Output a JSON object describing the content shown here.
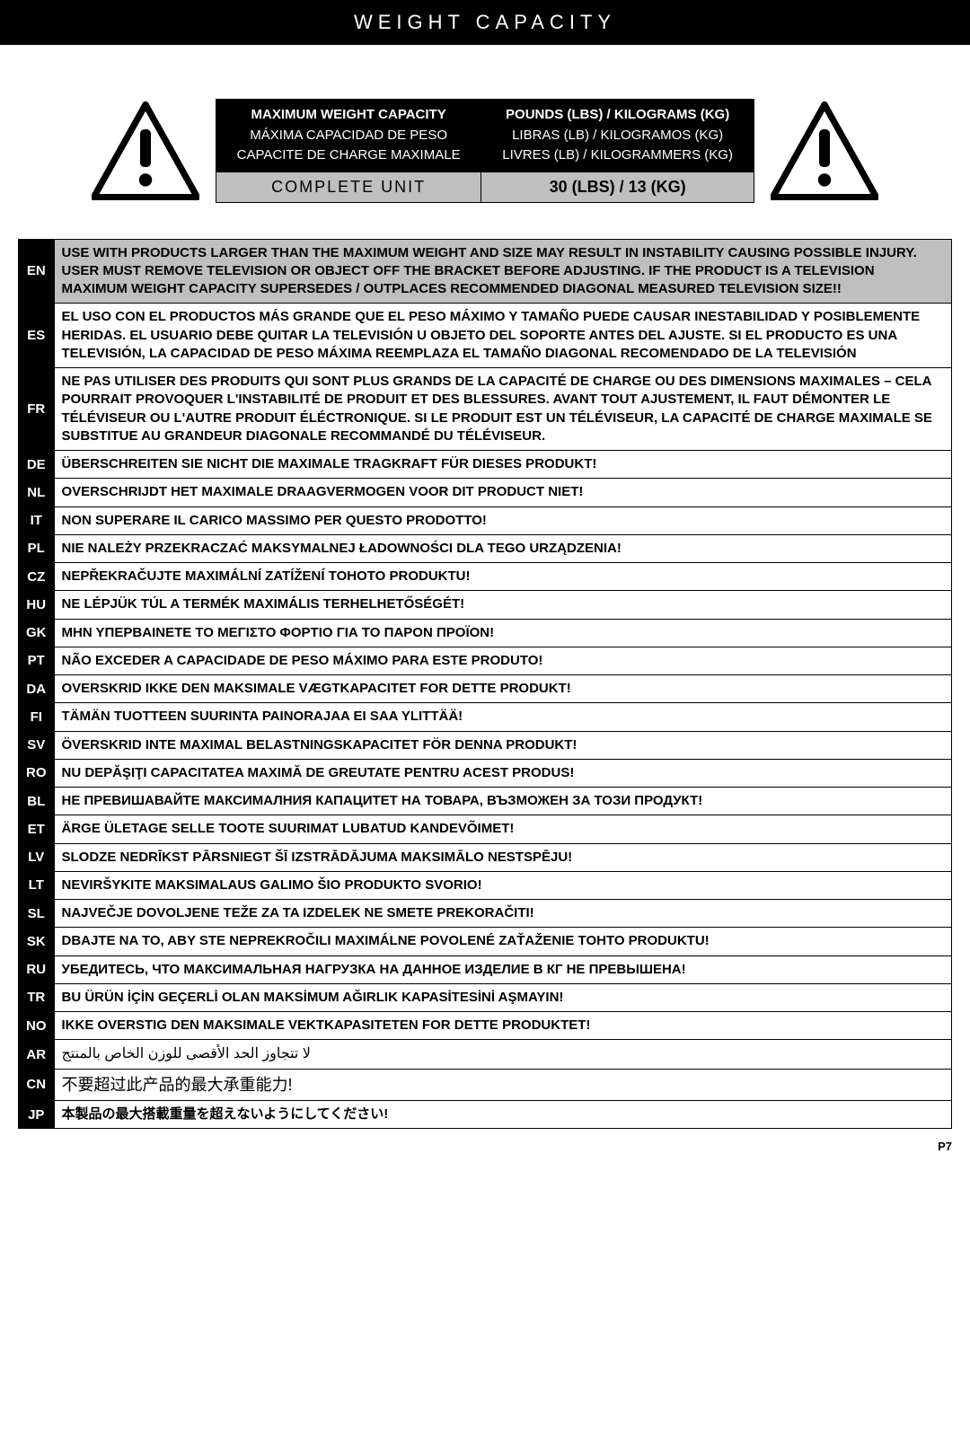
{
  "title": "WEIGHT CAPACITY",
  "page_number": "P7",
  "capacity": {
    "header_left": {
      "line1": "MAXIMUM WEIGHT CAPACITY",
      "line2": "MÁXIMA CAPACIDAD DE PESO",
      "line3": "CAPACITE DE CHARGE MAXIMALE"
    },
    "header_right": {
      "line1": "POUNDS (LBS) / KILOGRAMS (KG)",
      "line2": "LIBRAS (LB) / KILOGRAMOS (KG)",
      "line3": "LIVRES (LB) / KILOGRAMMERS (KG)"
    },
    "row_label": "COMPLETE UNIT",
    "row_value": "30 (LBS) / 13 (KG)"
  },
  "warnings": [
    {
      "lang": "EN",
      "shaded": true,
      "text": "USE WITH PRODUCTS LARGER THAN THE MAXIMUM WEIGHT AND SIZE MAY RESULT IN INSTABILITY CAUSING POSSIBLE INJURY.  USER MUST REMOVE TELEVISION OR OBJECT OFF THE BRACKET BEFORE ADJUSTING.  IF THE PRODUCT IS A TELEVISION MAXIMUM WEIGHT CAPACITY SUPERSEDES / OUTPLACES RECOMMENDED DIAGONAL  MEASURED TELEVISION SIZE!!"
    },
    {
      "lang": "ES",
      "shaded": false,
      "text": "EL USO CON EL PRODUCTOS MÁS GRANDE QUE EL PESO MÁXIMO Y TAMAÑO PUEDE CAUSAR INESTABILIDAD Y POSIBLEMENTE HERIDAS. EL USUARIO DEBE QUITAR LA TELEVISIÓN U OBJETO DEL SOPORTE ANTES DEL AJUSTE. SI EL PRODUCTO ES UNA TELEVISIÓN, LA CAPACIDAD DE PESO MÁXIMA REEMPLAZA EL TAMAÑO DIAGONAL RECOMENDADO DE LA TELEVISIÓN"
    },
    {
      "lang": "FR",
      "shaded": false,
      "text": "NE PAS UTILISER DES PRODUITS QUI SONT PLUS GRANDS DE LA CAPACITÉ DE CHARGE OU DES DIMENSIONS MAXIMALES – CELA POURRAIT PROVOQUER L'INSTABILITÉ DE PRODUIT ET DES BLESSURES. AVANT TOUT AJUSTEMENT, IL FAUT DÉMONTER LE TÉLÉVISEUR OU L'AUTRE PRODUIT ÉLÉCTRONIQUE. SI LE PRODUIT EST UN TÉLÉVISEUR, LA CAPACITÉ DE CHARGE MAXIMALE SE SUBSTITUE AU GRANDEUR DIAGONALE RECOMMANDÉ DU TÉLÉVISEUR."
    },
    {
      "lang": "DE",
      "shaded": false,
      "text": "ÜBERSCHREITEN SIE NICHT DIE MAXIMALE TRAGKRAFT FÜR DIESES PRODUKT!"
    },
    {
      "lang": "NL",
      "shaded": false,
      "text": "OVERSCHRIJDT HET MAXIMALE DRAAGVERMOGEN VOOR DIT PRODUCT NIET!"
    },
    {
      "lang": "IT",
      "shaded": false,
      "text": "NON SUPERARE IL CARICO MASSIMO PER QUESTO PRODOTTO!"
    },
    {
      "lang": "PL",
      "shaded": false,
      "text": "NIE NALEŻY PRZEKRACZAĆ MAKSYMALNEJ ŁADOWNOŚCI DLA TEGO URZĄDZENIA!"
    },
    {
      "lang": "CZ",
      "shaded": false,
      "text": "NEPŘEKRAČUJTE MAXIMÁLNÍ ZATÍŽENÍ TOHOTO PRODUKTU!"
    },
    {
      "lang": "HU",
      "shaded": false,
      "text": "NE LÉPJÜK TÚL A TERMÉK MAXIMÁLIS TERHELHETŐSÉGÉT!"
    },
    {
      "lang": "GK",
      "shaded": false,
      "text": "ΜΗΝ ΥΠΕΡΒΑΙΝΕΤΕ ΤΟ ΜΕΓΙΣΤΟ ΦΟΡΤΙΟ ΓΙΑ ΤΟ ΠΑΡΟΝ ΠΡΟΪΟΝ!"
    },
    {
      "lang": "PT",
      "shaded": false,
      "text": "NÃO EXCEDER A CAPACIDADE DE PESO MÁXIMO PARA ESTE PRODUTO!"
    },
    {
      "lang": "DA",
      "shaded": false,
      "text": "OVERSKRID IKKE DEN MAKSIMALE VÆGTKAPACITET FOR DETTE PRODUKT!"
    },
    {
      "lang": "FI",
      "shaded": false,
      "text": "TÄMÄN TUOTTEEN SUURINTA PAINORAJAA EI SAA YLITTÄÄ!"
    },
    {
      "lang": "SV",
      "shaded": false,
      "text": "ÖVERSKRID INTE MAXIMAL BELASTNINGSKAPACITET FÖR DENNA PRODUKT!"
    },
    {
      "lang": "RO",
      "shaded": false,
      "text": "NU DEPĂŞIŢI CAPACITATEA MAXIMĂ DE GREUTATE PENTRU ACEST PRODUS!"
    },
    {
      "lang": "BL",
      "shaded": false,
      "text": "НЕ ПРЕВИШАВАЙТЕ МАКСИМАЛНИЯ КАПАЦИТЕТ НА ТОВАРА, ВЪЗМОЖЕН ЗА ТОЗИ ПРОДУКТ!"
    },
    {
      "lang": "ET",
      "shaded": false,
      "text": "ÄRGE ÜLETAGE SELLE TOOTE SUURIMAT LUBATUD KANDEVÕIMET!"
    },
    {
      "lang": "LV",
      "shaded": false,
      "text": "SLODZE NEDRĪKST PĀRSNIEGT ŠĪ IZSTRĀDĀJUMA MAKSIMĀLO NESTSPĒJU!"
    },
    {
      "lang": "LT",
      "shaded": false,
      "text": "NEVIRŠYKITE MAKSIMALAUS GALIMO ŠIO PRODUKTO SVORIO!"
    },
    {
      "lang": "SL",
      "shaded": false,
      "text": "NAJVEČJE DOVOLJENE TEŽE ZA TA IZDELEK NE SMETE PREKORAČITI!"
    },
    {
      "lang": "SK",
      "shaded": false,
      "text": "DBAJTE NA TO, ABY STE NEPREKROČILI MAXIMÁLNE POVOLENÉ ZAŤAŽENIE TOHTO PRODUKTU!"
    },
    {
      "lang": "RU",
      "shaded": false,
      "text": "УБЕДИТЕСЬ, ЧТО МАКСИМАЛЬНАЯ НАГРУЗКА НА ДАННОЕ ИЗДЕЛИЕ В КГ НЕ ПРЕВЫШЕНА!"
    },
    {
      "lang": "TR",
      "shaded": false,
      "text": "BU ÜRÜN İÇİN GEÇERLİ OLAN MAKSİMUM AĞIRLIK KAPASİTESİNİ AŞMAYIN!"
    },
    {
      "lang": "NO",
      "shaded": false,
      "text": "IKKE OVERSTIG DEN MAKSIMALE VEKTKAPASITETEN FOR DETTE PRODUKTET!"
    },
    {
      "lang": "AR",
      "shaded": false,
      "text": "لا تتجاوز الحد الأقصى للوزن الخاص بالمنتج",
      "class": "ar-text"
    },
    {
      "lang": "CN",
      "shaded": false,
      "text": "不要超过此产品的最大承重能力!",
      "class": "cn-text"
    },
    {
      "lang": "JP",
      "shaded": false,
      "text": "本製品の最大搭載重量を超えないようにしてください!"
    }
  ]
}
